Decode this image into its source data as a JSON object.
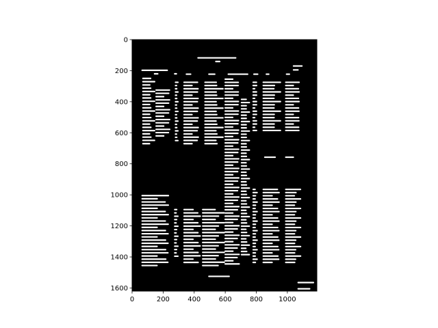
{
  "chart_data": {
    "type": "image",
    "title": "",
    "xlabel": "",
    "ylabel": "",
    "xlim": [
      0,
      1190
    ],
    "ylim": [
      1620,
      0
    ],
    "xticks": [
      0,
      200,
      400,
      600,
      800,
      1000
    ],
    "yticks": [
      0,
      200,
      400,
      600,
      800,
      1000,
      1200,
      1400,
      1600
    ],
    "xtick_labels": [
      "0",
      "200",
      "400",
      "600",
      "800",
      "1000"
    ],
    "ytick_labels": [
      "0",
      "200",
      "400",
      "600",
      "800",
      "1000",
      "1200",
      "1400",
      "1600"
    ],
    "background_color": "#000000",
    "foreground_color": "#ffffff",
    "content": "binarized scan of a document page with rows of text-line blobs",
    "text_blocks": [
      {
        "x0": 420,
        "x1": 745,
        "y0": 105,
        "y1": 130
      },
      {
        "x0": 535,
        "x1": 570,
        "y0": 132,
        "y1": 150
      },
      {
        "x0": 1035,
        "x1": 1100,
        "y0": 165,
        "y1": 200
      },
      {
        "x0": 60,
        "x1": 275,
        "y0": 190,
        "y1": 205
      },
      {
        "x0": 140,
        "x1": 190,
        "y0": 215,
        "y1": 225
      },
      {
        "x0": 270,
        "x1": 305,
        "y0": 205,
        "y1": 235
      },
      {
        "x0": 345,
        "x1": 395,
        "y0": 215,
        "y1": 230
      },
      {
        "x0": 490,
        "x1": 540,
        "y0": 215,
        "y1": 230
      },
      {
        "x0": 615,
        "x1": 750,
        "y0": 210,
        "y1": 235
      },
      {
        "x0": 780,
        "x1": 820,
        "y0": 210,
        "y1": 235
      },
      {
        "x0": 860,
        "x1": 900,
        "y0": 215,
        "y1": 230
      },
      {
        "x0": 990,
        "x1": 1040,
        "y0": 215,
        "y1": 230
      },
      {
        "x0": 65,
        "x1": 150,
        "y0": 245,
        "y1": 675
      },
      {
        "x0": 150,
        "x1": 255,
        "y0": 320,
        "y1": 625
      },
      {
        "x0": 275,
        "x1": 300,
        "y0": 270,
        "y1": 655
      },
      {
        "x0": 330,
        "x1": 440,
        "y0": 270,
        "y1": 675
      },
      {
        "x0": 465,
        "x1": 590,
        "y0": 270,
        "y1": 675
      },
      {
        "x0": 595,
        "x1": 700,
        "y0": 250,
        "y1": 1450
      },
      {
        "x0": 700,
        "x1": 760,
        "y0": 380,
        "y1": 1390
      },
      {
        "x0": 775,
        "x1": 810,
        "y0": 270,
        "y1": 590
      },
      {
        "x0": 840,
        "x1": 960,
        "y0": 270,
        "y1": 590
      },
      {
        "x0": 985,
        "x1": 1090,
        "y0": 270,
        "y1": 590
      },
      {
        "x0": 850,
        "x1": 960,
        "y0": 745,
        "y1": 770
      },
      {
        "x0": 985,
        "x1": 1090,
        "y0": 745,
        "y1": 770
      },
      {
        "x0": 775,
        "x1": 810,
        "y0": 960,
        "y1": 1440
      },
      {
        "x0": 840,
        "x1": 960,
        "y0": 960,
        "y1": 1440
      },
      {
        "x0": 985,
        "x1": 1090,
        "y0": 960,
        "y1": 1440
      },
      {
        "x0": 60,
        "x1": 250,
        "y0": 1000,
        "y1": 1460
      },
      {
        "x0": 270,
        "x1": 300,
        "y0": 1090,
        "y1": 1400
      },
      {
        "x0": 330,
        "x1": 450,
        "y0": 1090,
        "y1": 1440
      },
      {
        "x0": 450,
        "x1": 600,
        "y0": 1090,
        "y1": 1460
      },
      {
        "x0": 490,
        "x1": 665,
        "y0": 1515,
        "y1": 1535
      },
      {
        "x0": 1065,
        "x1": 1175,
        "y0": 1560,
        "y1": 1610
      }
    ]
  }
}
